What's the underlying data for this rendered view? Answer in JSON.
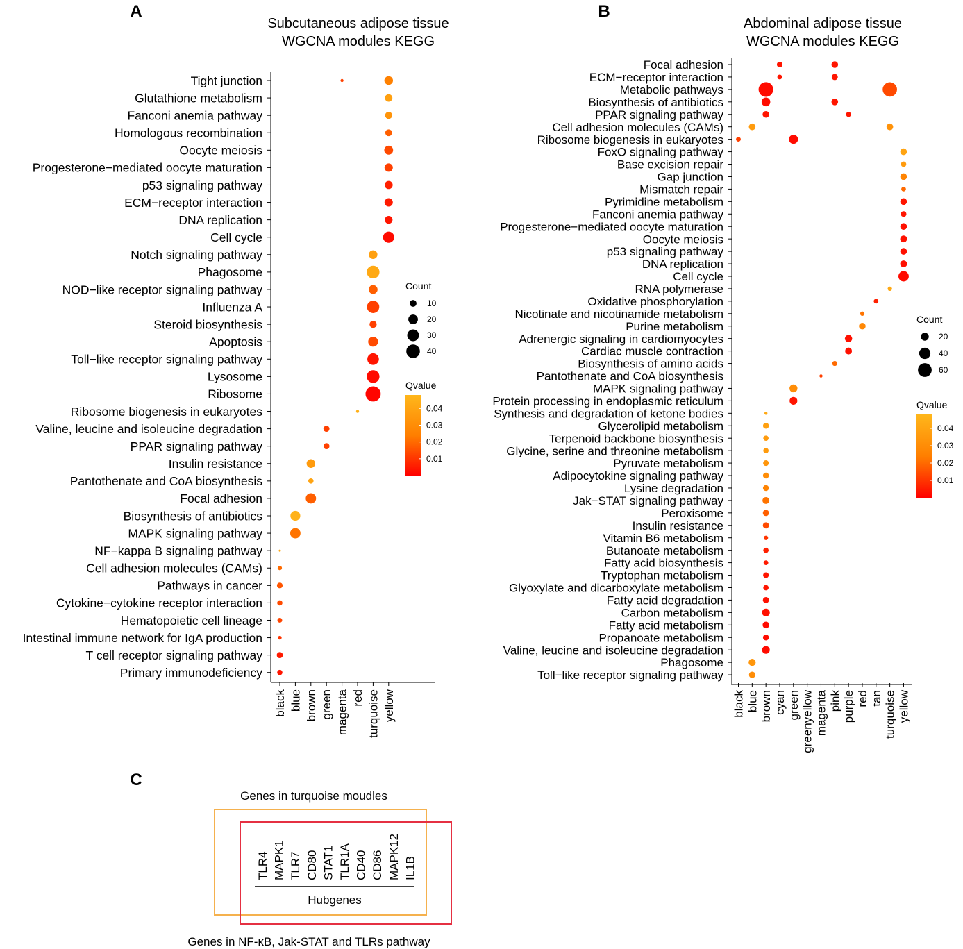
{
  "chart_data": [
    {
      "type": "scatter",
      "panel_label": "A",
      "title_lines": [
        "Subcutaneous adipose tissue",
        "WGCNA modules KEGG"
      ],
      "categories": [
        "black",
        "blue",
        "brown",
        "green",
        "magenta",
        "red",
        "turquoise",
        "yellow"
      ],
      "pathways": [
        "Tight junction",
        "Glutathione metabolism",
        "Fanconi anemia pathway",
        "Homologous recombination",
        "Oocyte meiosis",
        "Progesterone−mediated oocyte maturation",
        "p53 signaling pathway",
        "ECM−receptor interaction",
        "DNA replication",
        "Cell cycle",
        "Notch signaling pathway",
        "Phagosome",
        "NOD−like receptor signaling pathway",
        "Influenza A",
        "Steroid biosynthesis",
        "Apoptosis",
        "Toll−like receptor signaling pathway",
        "Lysosome",
        "Ribosome",
        "Ribosome biogenesis in eukaryotes",
        "Valine, leucine and isoleucine degradation",
        "PPAR signaling pathway",
        "Insulin resistance",
        "Pantothenate and CoA biosynthesis",
        "Focal adhesion",
        "Biosynthesis of antibiotics",
        "MAPK signaling pathway",
        "NF−kappa B signaling pathway",
        "Cell adhesion molecules (CAMs)",
        "Pathways in cancer",
        "Cytokine−cytokine receptor interaction",
        "Hematopoietic cell lineage",
        "Intestinal immune network for IgA production",
        "T cell receptor signaling pathway",
        "Primary immunodeficiency"
      ],
      "points": [
        {
          "pathway": "Tight junction",
          "module": "magenta",
          "count": 2,
          "qvalue": 0.012
        },
        {
          "pathway": "Tight junction",
          "module": "yellow",
          "count": 16,
          "qvalue": 0.025
        },
        {
          "pathway": "Glutathione metabolism",
          "module": "yellow",
          "count": 12,
          "qvalue": 0.038
        },
        {
          "pathway": "Fanconi anemia pathway",
          "module": "yellow",
          "count": 11,
          "qvalue": 0.033
        },
        {
          "pathway": "Homologous recombination",
          "module": "yellow",
          "count": 10,
          "qvalue": 0.018
        },
        {
          "pathway": "Oocyte meiosis",
          "module": "yellow",
          "count": 17,
          "qvalue": 0.014
        },
        {
          "pathway": "Progesterone−mediated oocyte maturation",
          "module": "yellow",
          "count": 15,
          "qvalue": 0.012
        },
        {
          "pathway": "p53 signaling pathway",
          "module": "yellow",
          "count": 14,
          "qvalue": 0.006
        },
        {
          "pathway": "ECM−receptor interaction",
          "module": "yellow",
          "count": 15,
          "qvalue": 0.005
        },
        {
          "pathway": "DNA replication",
          "module": "yellow",
          "count": 13,
          "qvalue": 0.004
        },
        {
          "pathway": "Cell cycle",
          "module": "yellow",
          "count": 27,
          "qvalue": 0.002
        },
        {
          "pathway": "Notch signaling pathway",
          "module": "turquoise",
          "count": 16,
          "qvalue": 0.038
        },
        {
          "pathway": "Phagosome",
          "module": "turquoise",
          "count": 35,
          "qvalue": 0.042
        },
        {
          "pathway": "NOD−like receptor signaling pathway",
          "module": "turquoise",
          "count": 17,
          "qvalue": 0.018
        },
        {
          "pathway": "Influenza A",
          "module": "turquoise",
          "count": 33,
          "qvalue": 0.012
        },
        {
          "pathway": "Steroid biosynthesis",
          "module": "turquoise",
          "count": 11,
          "qvalue": 0.012
        },
        {
          "pathway": "Apoptosis",
          "module": "turquoise",
          "count": 21,
          "qvalue": 0.014
        },
        {
          "pathway": "Toll−like receptor signaling pathway",
          "module": "turquoise",
          "count": 29,
          "qvalue": 0.004
        },
        {
          "pathway": "Lysosome",
          "module": "turquoise",
          "count": 35,
          "qvalue": 0.002
        },
        {
          "pathway": "Ribosome",
          "module": "turquoise",
          "count": 50,
          "qvalue": 0.001
        },
        {
          "pathway": "Ribosome biogenesis in eukaryotes",
          "module": "red",
          "count": 2,
          "qvalue": 0.045
        },
        {
          "pathway": "Valine, leucine and isoleucine degradation",
          "module": "green",
          "count": 8,
          "qvalue": 0.012
        },
        {
          "pathway": "PPAR signaling pathway",
          "module": "green",
          "count": 8,
          "qvalue": 0.012
        },
        {
          "pathway": "Insulin resistance",
          "module": "brown",
          "count": 16,
          "qvalue": 0.036
        },
        {
          "pathway": "Pantothenate and CoA biosynthesis",
          "module": "brown",
          "count": 6,
          "qvalue": 0.04
        },
        {
          "pathway": "Focal adhesion",
          "module": "brown",
          "count": 23,
          "qvalue": 0.018
        },
        {
          "pathway": "Biosynthesis of antibiotics",
          "module": "blue",
          "count": 21,
          "qvalue": 0.046
        },
        {
          "pathway": "MAPK signaling pathway",
          "module": "blue",
          "count": 23,
          "qvalue": 0.022
        },
        {
          "pathway": "NF−kappa B signaling pathway",
          "module": "black",
          "count": 1,
          "qvalue": 0.042
        },
        {
          "pathway": "Cell adhesion molecules (CAMs)",
          "module": "black",
          "count": 4,
          "qvalue": 0.02
        },
        {
          "pathway": "Pathways in cancer",
          "module": "black",
          "count": 7,
          "qvalue": 0.016
        },
        {
          "pathway": "Cytokine−cytokine receptor interaction",
          "module": "black",
          "count": 6,
          "qvalue": 0.014
        },
        {
          "pathway": "Hematopoietic cell lineage",
          "module": "black",
          "count": 5,
          "qvalue": 0.013
        },
        {
          "pathway": "Intestinal immune network for IgA production",
          "module": "black",
          "count": 3,
          "qvalue": 0.01
        },
        {
          "pathway": "T cell receptor signaling pathway",
          "module": "black",
          "count": 8,
          "qvalue": 0.005
        },
        {
          "pathway": "Primary immunodeficiency",
          "module": "black",
          "count": 6,
          "qvalue": 0.004
        }
      ],
      "size_legend": {
        "title": "Count",
        "values": [
          10,
          20,
          30,
          40
        ]
      },
      "color_legend": {
        "title": "Qvalue",
        "ticks": [
          "0.04",
          "0.03",
          "0.02",
          "0.01"
        ],
        "tick_values": [
          0.04,
          0.03,
          0.02,
          0.01
        ],
        "range": [
          0.0,
          0.048
        ],
        "low_color": "#FF0000",
        "mid_color": "#FF7F00",
        "high_color": "#FFB71B"
      }
    },
    {
      "type": "scatter",
      "panel_label": "B",
      "title_lines": [
        "Abdominal adipose tissue",
        "WGCNA modules KEGG"
      ],
      "categories": [
        "black",
        "blue",
        "brown",
        "cyan",
        "green",
        "greenyellow",
        "magenta",
        "pink",
        "purple",
        "red",
        "tan",
        "turquoise",
        "yellow"
      ],
      "pathways": [
        "Focal adhesion",
        "ECM−receptor interaction",
        "Metabolic pathways",
        "Biosynthesis of antibiotics",
        "PPAR signaling pathway",
        "Cell adhesion molecules (CAMs)",
        "Ribosome biogenesis in eukaryotes",
        "FoxO signaling pathway",
        "Base excision repair",
        "Gap junction",
        "Mismatch repair",
        "Pyrimidine metabolism",
        "Fanconi anemia pathway",
        "Progesterone−mediated oocyte maturation",
        "Oocyte meiosis",
        "p53 signaling pathway",
        "DNA replication",
        "Cell cycle",
        "RNA polymerase",
        "Oxidative phosphorylation",
        "Nicotinate and nicotinamide metabolism",
        "Purine metabolism",
        "Adrenergic signaling in cardiomyocytes",
        "Cardiac muscle contraction",
        "Biosynthesis of amino acids",
        "Pantothenate and CoA biosynthesis",
        "MAPK signaling pathway",
        "Protein processing in endoplasmic reticulum",
        "Synthesis and degradation of ketone bodies",
        "Glycerolipid metabolism",
        "Terpenoid backbone biosynthesis",
        "Glycine, serine and threonine metabolism",
        "Pyruvate metabolism",
        "Adipocytokine signaling pathway",
        "Lysine degradation",
        "Jak−STAT signaling pathway",
        "Peroxisome",
        "Insulin resistance",
        "Vitamin B6 metabolism",
        "Butanoate metabolism",
        "Fatty acid biosynthesis",
        "Tryptophan metabolism",
        "Glyoxylate and dicarboxylate metabolism",
        "Fatty acid degradation",
        "Carbon metabolism",
        "Fatty acid metabolism",
        "Propanoate metabolism",
        "Valine, leucine and isoleucine degradation",
        "Phagosome",
        "Toll−like receptor signaling pathway"
      ],
      "points": [
        {
          "pathway": "Focal adhesion",
          "module": "cyan",
          "count": 10,
          "qvalue": 0.004
        },
        {
          "pathway": "Focal adhesion",
          "module": "pink",
          "count": 14,
          "qvalue": 0.004
        },
        {
          "pathway": "ECM−receptor interaction",
          "module": "cyan",
          "count": 7,
          "qvalue": 0.004
        },
        {
          "pathway": "ECM−receptor interaction",
          "module": "pink",
          "count": 12,
          "qvalue": 0.004
        },
        {
          "pathway": "Metabolic pathways",
          "module": "brown",
          "count": 68,
          "qvalue": 0.002
        },
        {
          "pathway": "Metabolic pathways",
          "module": "turquoise",
          "count": 65,
          "qvalue": 0.014
        },
        {
          "pathway": "Biosynthesis of antibiotics",
          "module": "brown",
          "count": 24,
          "qvalue": 0.002
        },
        {
          "pathway": "Biosynthesis of antibiotics",
          "module": "pink",
          "count": 14,
          "qvalue": 0.004
        },
        {
          "pathway": "PPAR signaling pathway",
          "module": "brown",
          "count": 14,
          "qvalue": 0.004
        },
        {
          "pathway": "PPAR signaling pathway",
          "module": "purple",
          "count": 8,
          "qvalue": 0.004
        },
        {
          "pathway": "Cell adhesion molecules (CAMs)",
          "module": "blue",
          "count": 14,
          "qvalue": 0.036
        },
        {
          "pathway": "Cell adhesion molecules (CAMs)",
          "module": "turquoise",
          "count": 14,
          "qvalue": 0.032
        },
        {
          "pathway": "Ribosome biogenesis in eukaryotes",
          "module": "black",
          "count": 7,
          "qvalue": 0.012
        },
        {
          "pathway": "Ribosome biogenesis in eukaryotes",
          "module": "green",
          "count": 26,
          "qvalue": 0.002
        },
        {
          "pathway": "FoxO signaling pathway",
          "module": "yellow",
          "count": 14,
          "qvalue": 0.04
        },
        {
          "pathway": "Base excision repair",
          "module": "yellow",
          "count": 9,
          "qvalue": 0.036
        },
        {
          "pathway": "Gap junction",
          "module": "yellow",
          "count": 14,
          "qvalue": 0.026
        },
        {
          "pathway": "Mismatch repair",
          "module": "yellow",
          "count": 7,
          "qvalue": 0.02
        },
        {
          "pathway": "Pyrimidine metabolism",
          "module": "yellow",
          "count": 14,
          "qvalue": 0.004
        },
        {
          "pathway": "Fanconi anemia pathway",
          "module": "yellow",
          "count": 10,
          "qvalue": 0.004
        },
        {
          "pathway": "Progesterone−mediated oocyte maturation",
          "module": "yellow",
          "count": 14,
          "qvalue": 0.003
        },
        {
          "pathway": "Oocyte meiosis",
          "module": "yellow",
          "count": 15,
          "qvalue": 0.003
        },
        {
          "pathway": "p53 signaling pathway",
          "module": "yellow",
          "count": 14,
          "qvalue": 0.003
        },
        {
          "pathway": "DNA replication",
          "module": "yellow",
          "count": 15,
          "qvalue": 0.003
        },
        {
          "pathway": "Cell cycle",
          "module": "yellow",
          "count": 34,
          "qvalue": 0.002
        },
        {
          "pathway": "RNA polymerase",
          "module": "turquoise",
          "count": 6,
          "qvalue": 0.042
        },
        {
          "pathway": "Oxidative phosphorylation",
          "module": "tan",
          "count": 7,
          "qvalue": 0.006
        },
        {
          "pathway": "Nicotinate and nicotinamide metabolism",
          "module": "red",
          "count": 6,
          "qvalue": 0.022
        },
        {
          "pathway": "Purine metabolism",
          "module": "red",
          "count": 14,
          "qvalue": 0.028
        },
        {
          "pathway": "Adrenergic signaling in cardiomyocytes",
          "module": "purple",
          "count": 17,
          "qvalue": 0.003
        },
        {
          "pathway": "Cardiac muscle contraction",
          "module": "purple",
          "count": 15,
          "qvalue": 0.003
        },
        {
          "pathway": "Biosynthesis of amino acids",
          "module": "pink",
          "count": 8,
          "qvalue": 0.02
        },
        {
          "pathway": "Pantothenate and CoA biosynthesis",
          "module": "magenta",
          "count": 3,
          "qvalue": 0.012
        },
        {
          "pathway": "MAPK signaling pathway",
          "module": "green",
          "count": 20,
          "qvalue": 0.03
        },
        {
          "pathway": "Protein processing in endoplasmic reticulum",
          "module": "green",
          "count": 19,
          "qvalue": 0.004
        },
        {
          "pathway": "Synthesis and degradation of ketone bodies",
          "module": "brown",
          "count": 3,
          "qvalue": 0.042
        },
        {
          "pathway": "Glycerolipid metabolism",
          "module": "brown",
          "count": 11,
          "qvalue": 0.038
        },
        {
          "pathway": "Terpenoid backbone biosynthesis",
          "module": "brown",
          "count": 9,
          "qvalue": 0.036
        },
        {
          "pathway": "Glycine, serine and threonine metabolism",
          "module": "brown",
          "count": 9,
          "qvalue": 0.036
        },
        {
          "pathway": "Pyruvate metabolism",
          "module": "brown",
          "count": 10,
          "qvalue": 0.034
        },
        {
          "pathway": "Adipocytokine signaling pathway",
          "module": "brown",
          "count": 11,
          "qvalue": 0.03
        },
        {
          "pathway": "Lysine degradation",
          "module": "brown",
          "count": 11,
          "qvalue": 0.026
        },
        {
          "pathway": "Jak−STAT signaling pathway",
          "module": "brown",
          "count": 15,
          "qvalue": 0.022
        },
        {
          "pathway": "Peroxisome",
          "module": "brown",
          "count": 12,
          "qvalue": 0.018
        },
        {
          "pathway": "Insulin resistance",
          "module": "brown",
          "count": 12,
          "qvalue": 0.014
        },
        {
          "pathway": "Vitamin B6 metabolism",
          "module": "brown",
          "count": 6,
          "qvalue": 0.01
        },
        {
          "pathway": "Butanoate metabolism",
          "module": "brown",
          "count": 9,
          "qvalue": 0.006
        },
        {
          "pathway": "Fatty acid biosynthesis",
          "module": "brown",
          "count": 7,
          "qvalue": 0.005
        },
        {
          "pathway": "Tryptophan metabolism",
          "module": "brown",
          "count": 10,
          "qvalue": 0.004
        },
        {
          "pathway": "Glyoxylate and dicarboxylate metabolism",
          "module": "brown",
          "count": 9,
          "qvalue": 0.004
        },
        {
          "pathway": "Fatty acid degradation",
          "module": "brown",
          "count": 12,
          "qvalue": 0.003
        },
        {
          "pathway": "Carbon metabolism",
          "module": "brown",
          "count": 19,
          "qvalue": 0.003
        },
        {
          "pathway": "Fatty acid metabolism",
          "module": "brown",
          "count": 14,
          "qvalue": 0.002
        },
        {
          "pathway": "Propanoate metabolism",
          "module": "brown",
          "count": 11,
          "qvalue": 0.002
        },
        {
          "pathway": "Valine, leucine and isoleucine degradation",
          "module": "brown",
          "count": 19,
          "qvalue": 0.002
        },
        {
          "pathway": "Phagosome",
          "module": "blue",
          "count": 16,
          "qvalue": 0.034
        },
        {
          "pathway": "Toll−like receptor signaling pathway",
          "module": "blue",
          "count": 13,
          "qvalue": 0.03
        }
      ],
      "size_legend": {
        "title": "Count",
        "values": [
          20,
          40,
          60
        ]
      },
      "color_legend": {
        "title": "Qvalue",
        "ticks": [
          "0.04",
          "0.03",
          "0.02",
          "0.01"
        ],
        "tick_values": [
          0.04,
          0.03,
          0.02,
          0.01
        ],
        "range": [
          0.0,
          0.048
        ],
        "low_color": "#FF0000",
        "mid_color": "#FF7F00",
        "high_color": "#FFB71B"
      }
    }
  ],
  "venn": {
    "panel_label": "C",
    "top_label": "Genes in turquoise moudles",
    "bottom_label": "Genes in NF-κB, Jak-STAT and TLRs pathway",
    "genes": [
      "TLR4",
      "MAPK1",
      "TLR7",
      "CD80",
      "STAT1",
      "TLR1A",
      "CD40",
      "CD86",
      "MAPK12",
      "IL1B"
    ],
    "hub_label": "Hubgenes",
    "turquoise_box_color": "#F5B14E",
    "pathway_box_color": "#E53042"
  }
}
